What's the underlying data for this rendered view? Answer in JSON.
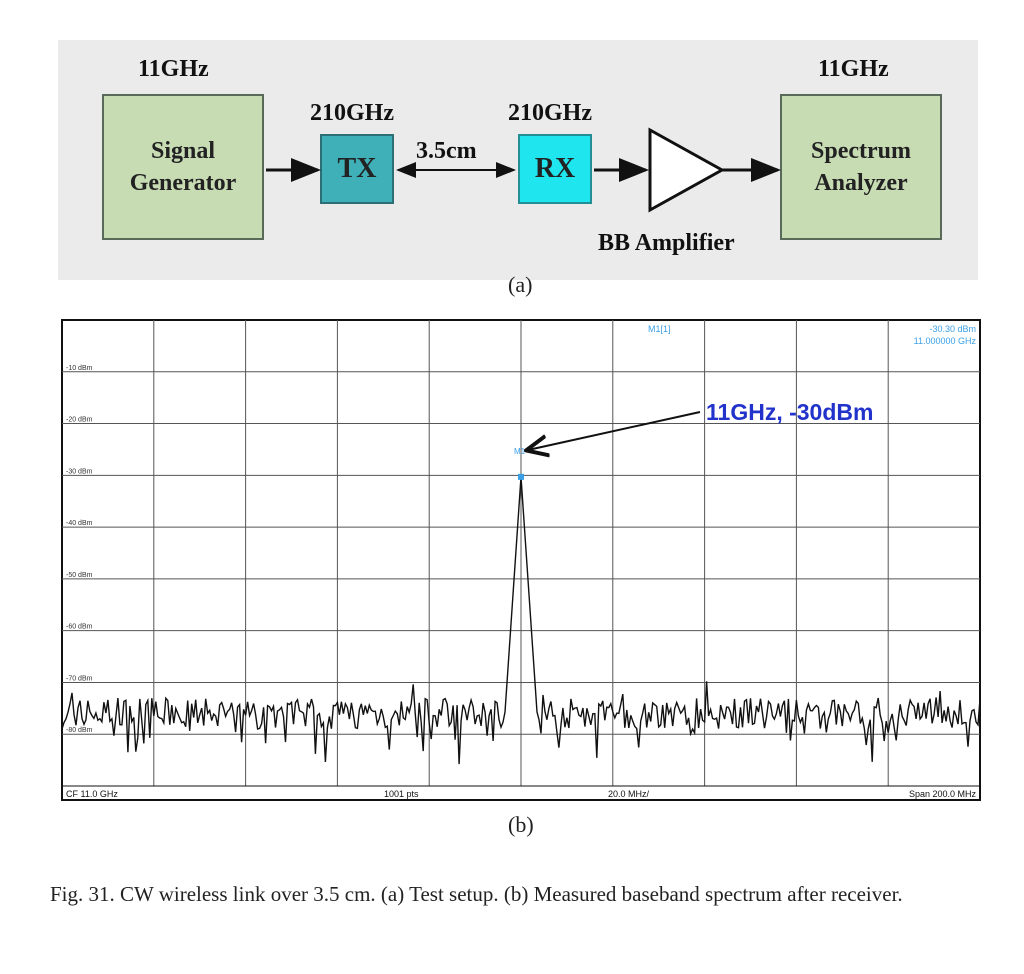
{
  "diagram": {
    "gen_freq": "11GHz",
    "gen_label_1": "Signal",
    "gen_label_2": "Generator",
    "tx_freq": "210GHz",
    "tx_label": "TX",
    "distance": "3.5cm",
    "rx_freq": "210GHz",
    "rx_label": "RX",
    "amp_label": "BB Amplifier",
    "sa_freq": "11GHz",
    "sa_label_1": "Spectrum",
    "sa_label_2": "Analyzer",
    "sublabel": "(a)",
    "colors": {
      "panel_bg": "#ebebeb",
      "box_green": "#c8dcb4",
      "tx": "#3fb0b8",
      "rx": "#1fe6ee"
    }
  },
  "spectrum": {
    "marker_label": "M1[1]",
    "marker_value": "-30.30 dBm",
    "marker_freq": "11.000000 GHz",
    "annotation": "11GHz, -30dBm",
    "marker_tag": "M1",
    "footer_cf": "CF 11.0 GHz",
    "footer_pts": "1001 pts",
    "footer_div": "20.0 MHz/",
    "footer_span": "Span 200.0 MHz",
    "sublabel": "(b)",
    "colors": {
      "annotation": "#2233cc",
      "marker": "#3aa0e6",
      "trace": "#111111"
    }
  },
  "chart_data": {
    "type": "line",
    "title": "",
    "xlabel": "",
    "ylabel": "",
    "x_center_ghz": 11.0,
    "x_span_mhz": 200.0,
    "xlim_ghz": [
      10.9,
      11.1
    ],
    "ylim_dbm": [
      -90,
      0
    ],
    "y_ticks": [
      "-10 dBm",
      "-20 dBm",
      "-30 dBm",
      "-40 dBm",
      "-50 dBm",
      "-60 dBm",
      "-70 dBm",
      "-80 dBm"
    ],
    "y_tick_values": [
      -10,
      -20,
      -30,
      -40,
      -50,
      -60,
      -70,
      -80
    ],
    "grid": true,
    "series": [
      {
        "values_description_points_ghz_dbm": [
          [
            10.9,
            -76
          ],
          [
            10.995,
            -76
          ],
          [
            10.998,
            -60
          ],
          [
            11.0,
            -30.3
          ],
          [
            11.002,
            -60
          ],
          [
            11.005,
            -76
          ],
          [
            11.1,
            -76
          ]
        ]
      }
    ],
    "peak": {
      "x_ghz": 11.0,
      "y_dbm": -30.3
    },
    "noise_floor_dbm": -76
  },
  "caption": "Fig. 31.   CW wireless link over 3.5 cm. (a) Test setup. (b) Measured baseband spectrum after receiver."
}
